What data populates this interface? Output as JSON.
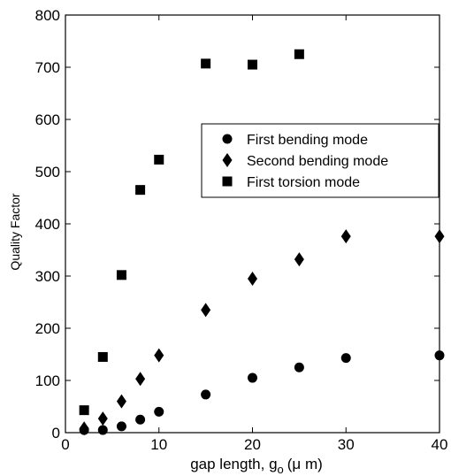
{
  "chart_data": {
    "type": "scatter",
    "xlabel_main": "gap length, g",
    "xlabel_sub": "o",
    "xlabel_unit": "(μ m)",
    "ylabel": "Quality Factor",
    "xlim": [
      0,
      40
    ],
    "ylim": [
      0,
      800
    ],
    "xticks": [
      "0",
      "10",
      "20",
      "30",
      "40"
    ],
    "yticks": [
      "0",
      "100",
      "200",
      "300",
      "400",
      "500",
      "600",
      "700",
      "800"
    ],
    "grid": false,
    "legend_position": "upper-right",
    "series": [
      {
        "name": "First bending mode",
        "marker": "circle",
        "x": [
          2,
          4,
          6,
          8,
          10,
          15,
          20,
          25,
          30,
          40
        ],
        "y": [
          5,
          5,
          12,
          25,
          40,
          73,
          105,
          125,
          143,
          148
        ]
      },
      {
        "name": "Second bending mode",
        "marker": "diamond",
        "x": [
          2,
          4,
          6,
          8,
          10,
          15,
          20,
          25,
          30,
          40
        ],
        "y": [
          8,
          27,
          60,
          103,
          148,
          235,
          295,
          332,
          376,
          376
        ]
      },
      {
        "name": "First torsion mode",
        "marker": "square",
        "x": [
          2,
          4,
          6,
          8,
          10,
          15,
          20,
          25
        ],
        "y": [
          43,
          145,
          302,
          465,
          523,
          707,
          705,
          725
        ]
      }
    ]
  }
}
